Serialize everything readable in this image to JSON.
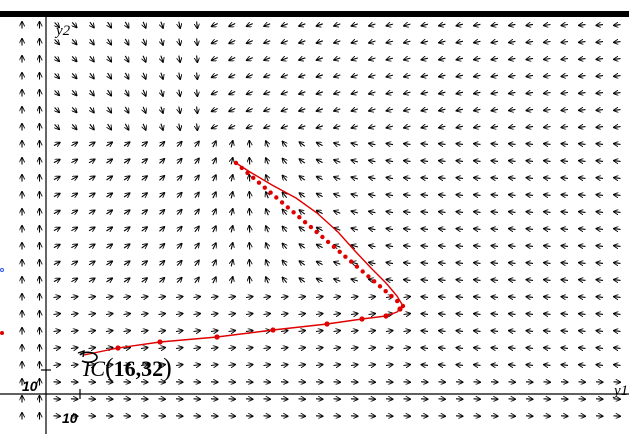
{
  "graph": {
    "axis_x_label": "y1",
    "axis_y_label": "y2",
    "tick_x_label": "10",
    "tick_y_label": "10",
    "initial_condition": {
      "name": "IC",
      "point_text": "16,32"
    }
  },
  "colors": {
    "field_arrows": "#000000",
    "solution_curve": "#e00000",
    "solution_points": "#e00000",
    "axes": "#000000",
    "ic_marker": "#000000"
  }
}
